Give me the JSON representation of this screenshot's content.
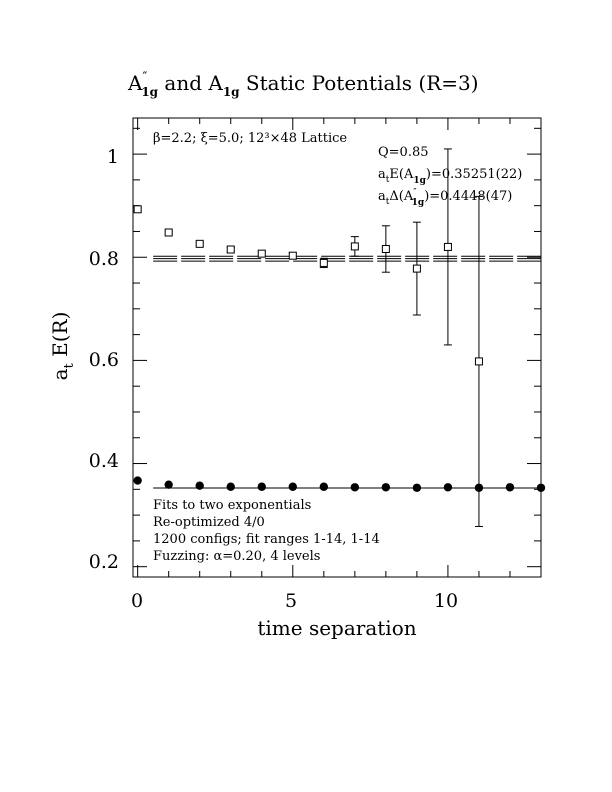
{
  "chart_data": {
    "type": "scatter",
    "title": "A″ and A Static Potentials (R=3)",
    "title_parts": {
      "main": "A",
      "prime": "″",
      "sub": "1g",
      "and": " and A",
      "sub2": "1g",
      "rest": " Static Potentials (R=3)"
    },
    "xlabel": "time separation",
    "ylabel": "a  E(R)",
    "ylabel_parts": {
      "main": "a",
      "sub": "t",
      "rest": " E(R)"
    },
    "xlim": [
      -0.15,
      13.0
    ],
    "ylim": [
      0.18,
      1.07
    ],
    "xticks": [
      0,
      5,
      10
    ],
    "xtick_labels": [
      "0",
      "5",
      "10"
    ],
    "yticks": [
      0.2,
      0.4,
      0.6,
      0.8,
      1
    ],
    "ytick_labels": [
      "0.2",
      "0.4",
      "0.6",
      "0.8",
      "1"
    ],
    "legend_position": "none",
    "top_left_annotation": "β=2.2; ξ=5.0; 12³×48 Lattice",
    "fit_info": {
      "q": "Q=0.85",
      "energy": "a E(A )=0.35251(22)",
      "energy_parts": {
        "a": "a",
        "t": "t",
        "E": "E(A",
        "sub": "1g",
        "rest": ")=0.35251(22)"
      },
      "gap": "a Δ(A″ )=0.4448(47)",
      "gap_parts": {
        "a": "a",
        "t": "t",
        "D": "Δ(A",
        "prime": "″",
        "sub": "1g",
        "rest": ")=0.4448(47)"
      }
    },
    "bottom_notes": [
      "Fits to two exponentials",
      "Re-optimized 4/0",
      "1200 configs; fit ranges 1-14, 1-14",
      "Fuzzing: α=0.20, 4 levels"
    ],
    "series": [
      {
        "name": "A″ 1g",
        "marker": "open-square",
        "points": [
          {
            "x": 0,
            "y": 0.893,
            "err": 0.003
          },
          {
            "x": 1,
            "y": 0.848,
            "err": 0.003
          },
          {
            "x": 2,
            "y": 0.826,
            "err": 0.003
          },
          {
            "x": 3,
            "y": 0.815,
            "err": 0.004
          },
          {
            "x": 4,
            "y": 0.807,
            "err": 0.004
          },
          {
            "x": 5,
            "y": 0.803,
            "err": 0.005
          },
          {
            "x": 6,
            "y": 0.789,
            "err": 0.009
          },
          {
            "x": 7,
            "y": 0.821,
            "err": 0.019
          },
          {
            "x": 8,
            "y": 0.816,
            "err": 0.045
          },
          {
            "x": 9,
            "y": 0.778,
            "err": 0.09
          },
          {
            "x": 10,
            "y": 0.82,
            "err": 0.19
          },
          {
            "x": 11,
            "y": 0.598,
            "err": 0.32
          }
        ]
      },
      {
        "name": "A 1g",
        "marker": "filled-circle",
        "points": [
          {
            "x": 0,
            "y": 0.367,
            "err": 0.0
          },
          {
            "x": 1,
            "y": 0.359,
            "err": 0.0
          },
          {
            "x": 2,
            "y": 0.357,
            "err": 0.0
          },
          {
            "x": 3,
            "y": 0.355,
            "err": 0.0
          },
          {
            "x": 4,
            "y": 0.355,
            "err": 0.0
          },
          {
            "x": 5,
            "y": 0.355,
            "err": 0.0
          },
          {
            "x": 6,
            "y": 0.355,
            "err": 0.0
          },
          {
            "x": 7,
            "y": 0.354,
            "err": 0.0
          },
          {
            "x": 8,
            "y": 0.354,
            "err": 0.0
          },
          {
            "x": 9,
            "y": 0.353,
            "err": 0.0
          },
          {
            "x": 10,
            "y": 0.354,
            "err": 0.0
          },
          {
            "x": 11,
            "y": 0.353,
            "err": 0.0
          },
          {
            "x": 12,
            "y": 0.354,
            "err": 0.0
          },
          {
            "x": 13,
            "y": 0.353,
            "err": 0.0
          }
        ]
      }
    ],
    "fit_lines": [
      {
        "name": "A1g fit",
        "y": 0.35251,
        "x_start": 0.5,
        "x_end": 13.0,
        "style": "solid"
      },
      {
        "name": "A''1g fit upper",
        "y": 0.802,
        "x_start": 0.5,
        "x_end": 13.0,
        "style": "dashed"
      },
      {
        "name": "A''1g fit center",
        "y": 0.7973,
        "x_start": 0.5,
        "x_end": 13.0,
        "style": "dashed"
      },
      {
        "name": "A''1g fit lower",
        "y": 0.7926,
        "x_start": 0.5,
        "x_end": 13.0,
        "style": "dashed"
      }
    ]
  }
}
